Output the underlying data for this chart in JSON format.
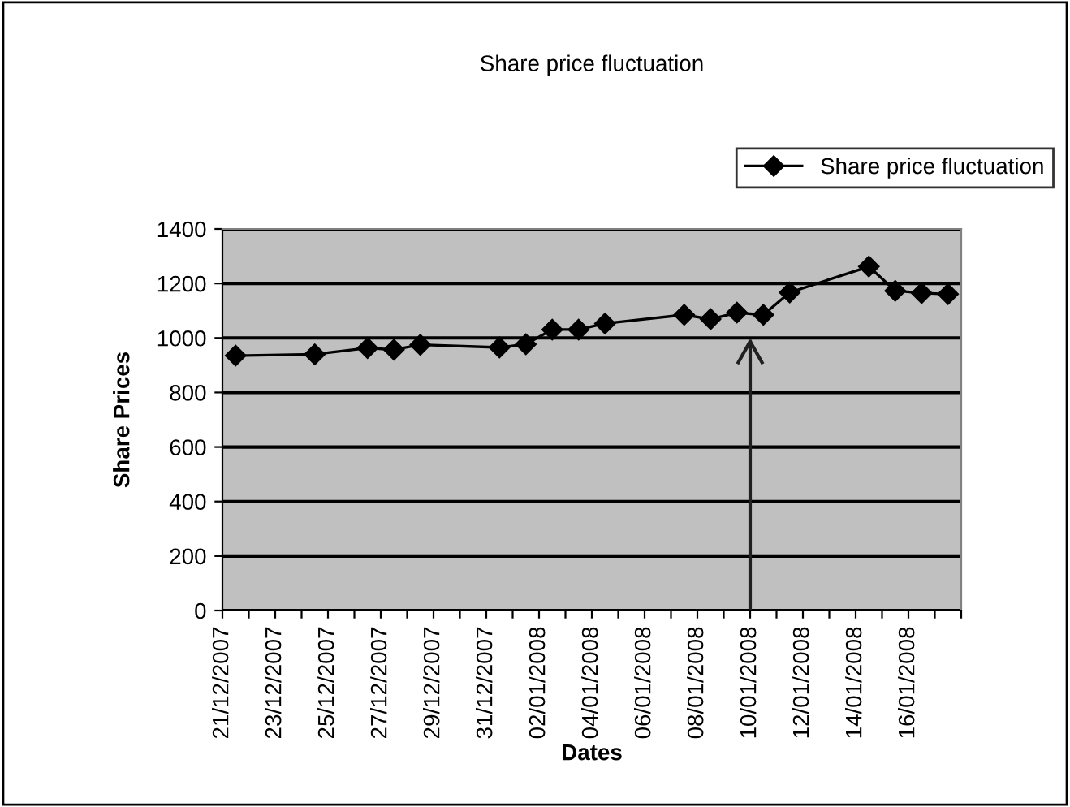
{
  "chart_data": {
    "type": "line",
    "title": "Share price fluctuation",
    "xlabel": "Dates",
    "ylabel": "Share Prices",
    "x": [
      "2007-12-21T12:00",
      "2007-12-24T12:00",
      "2007-12-26T12:00",
      "2007-12-27T12:00",
      "2007-12-28T12:00",
      "2007-12-31T12:00",
      "2008-01-01T12:00",
      "2008-01-02T12:00",
      "2008-01-03T12:00",
      "2008-01-04T12:00",
      "2008-01-07T12:00",
      "2008-01-08T12:00",
      "2008-01-09T12:00",
      "2008-01-10T12:00",
      "2008-01-11T12:00",
      "2008-01-14T12:00",
      "2008-01-15T12:00",
      "2008-01-16T12:00",
      "2008-01-17T12:00"
    ],
    "series": [
      {
        "name": "Share price fluctuation",
        "color": "#000000",
        "values": [
          935,
          940,
          963,
          957,
          975,
          965,
          977,
          1031,
          1031,
          1053,
          1085,
          1069,
          1093,
          1085,
          1167,
          1262,
          1173,
          1165,
          1161
        ]
      }
    ],
    "xlim": [
      "2007-12-21",
      "2008-01-18"
    ],
    "xticks": [
      {
        "value": "2007-12-21",
        "label": "21/12/2007"
      },
      {
        "value": "2007-12-22",
        "label": null
      },
      {
        "value": "2007-12-23",
        "label": "23/12/2007"
      },
      {
        "value": "2007-12-24",
        "label": null
      },
      {
        "value": "2007-12-25",
        "label": "25/12/2007"
      },
      {
        "value": "2007-12-26",
        "label": null
      },
      {
        "value": "2007-12-27",
        "label": "27/12/2007"
      },
      {
        "value": "2007-12-28",
        "label": null
      },
      {
        "value": "2007-12-29",
        "label": "29/12/2007"
      },
      {
        "value": "2007-12-30",
        "label": null
      },
      {
        "value": "2007-12-31",
        "label": "31/12/2007"
      },
      {
        "value": "2008-01-01",
        "label": null
      },
      {
        "value": "2008-01-02",
        "label": "02/01/2008"
      },
      {
        "value": "2008-01-03",
        "label": null
      },
      {
        "value": "2008-01-04",
        "label": "04/01/2008"
      },
      {
        "value": "2008-01-05",
        "label": null
      },
      {
        "value": "2008-01-06",
        "label": "06/01/2008"
      },
      {
        "value": "2008-01-07",
        "label": null
      },
      {
        "value": "2008-01-08",
        "label": "08/01/2008"
      },
      {
        "value": "2008-01-09",
        "label": null
      },
      {
        "value": "2008-01-10",
        "label": "10/01/2008"
      },
      {
        "value": "2008-01-11",
        "label": null
      },
      {
        "value": "2008-01-12",
        "label": "12/01/2008"
      },
      {
        "value": "2008-01-13",
        "label": null
      },
      {
        "value": "2008-01-14",
        "label": "14/01/2008"
      },
      {
        "value": "2008-01-15",
        "label": null
      },
      {
        "value": "2008-01-16",
        "label": "16/01/2008"
      },
      {
        "value": "2008-01-17",
        "label": null
      },
      {
        "value": "2008-01-18",
        "label": null
      }
    ],
    "ylim": [
      0,
      1400
    ],
    "yticks": [
      0,
      200,
      400,
      600,
      800,
      1000,
      1200,
      1400
    ],
    "ref_lines": [
      {
        "axis": "x",
        "value": "2008-01-10",
        "label": null,
        "color": "#202020",
        "line_style": "solid"
      }
    ],
    "grid": "y",
    "legend": "top right",
    "marker": "diamond",
    "line_style": "solid"
  }
}
